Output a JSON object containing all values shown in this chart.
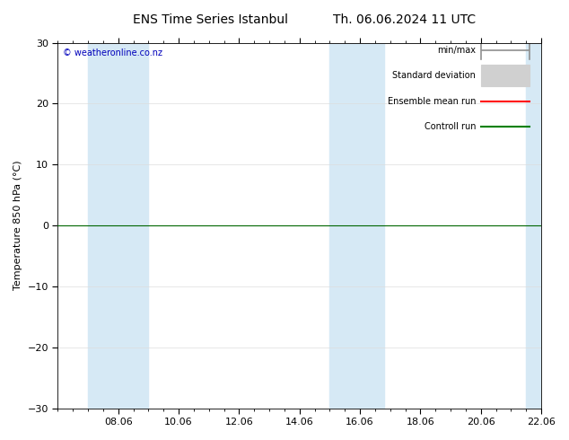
{
  "title_left": "ENS Time Series Istanbul",
  "title_right": "Th. 06.06.2024 11 UTC",
  "ylabel": "Temperature 850 hPa (°C)",
  "ylim": [
    -30,
    30
  ],
  "yticks": [
    -30,
    -20,
    -10,
    0,
    10,
    20,
    30
  ],
  "xlabel_ticks": [
    "08.06",
    "10.06",
    "12.06",
    "14.06",
    "16.06",
    "18.06",
    "20.06",
    "22.06"
  ],
  "xtick_positions": [
    2,
    4,
    6,
    8,
    10,
    12,
    14,
    16
  ],
  "xlim": [
    0,
    16
  ],
  "watermark": "© weatheronline.co.nz",
  "background_color": "#ffffff",
  "plot_bg_color": "#ffffff",
  "band_color": "#d6e9f5",
  "shaded_regions": [
    [
      1.0,
      2.0
    ],
    [
      2.0,
      3.0
    ],
    [
      9.0,
      9.9
    ],
    [
      9.9,
      10.8
    ],
    [
      15.5,
      16.0
    ]
  ],
  "hline_y": 0,
  "hline_color": "#006600",
  "legend_entries": [
    {
      "label": "min/max",
      "color": "#909090",
      "style": "minmax"
    },
    {
      "label": "Standard deviation",
      "color": "#c8c8c8",
      "style": "stddev"
    },
    {
      "label": "Ensemble mean run",
      "color": "#ff0000",
      "style": "line"
    },
    {
      "label": "Controll run",
      "color": "#008000",
      "style": "line"
    }
  ],
  "grid_color": "#dddddd",
  "tick_color": "#000000",
  "font_size": 8,
  "title_font_size": 10
}
